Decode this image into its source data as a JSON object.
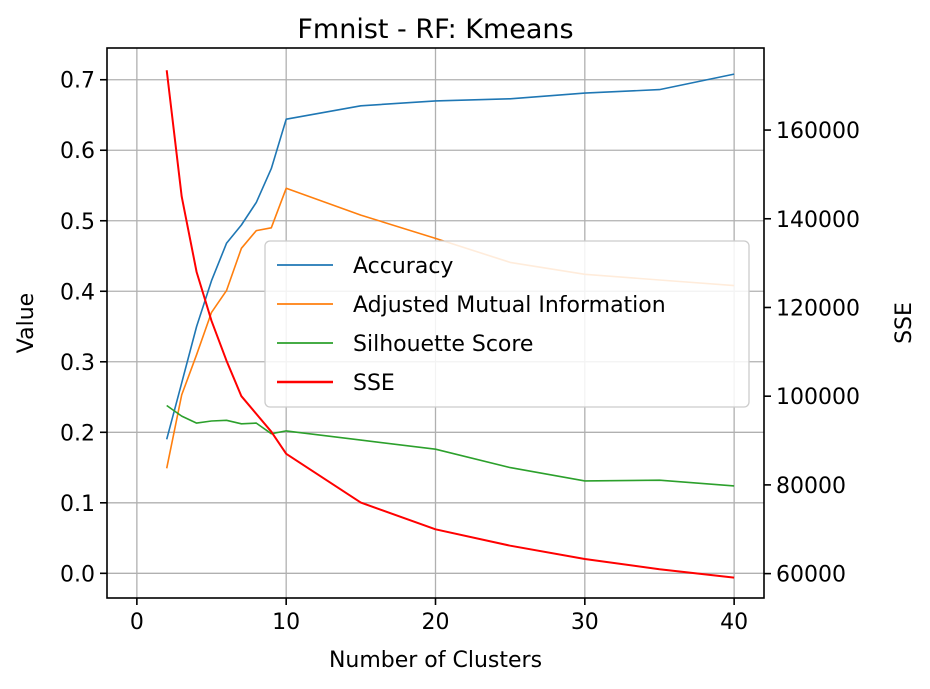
{
  "chart_data": {
    "type": "line",
    "title": "Fmnist - RF: Kmeans",
    "xlabel": "Number of Clusters",
    "ylabel": "Value",
    "y2label": "SSE",
    "xlim": [
      -2,
      42
    ],
    "ylim": [
      -0.035,
      0.745
    ],
    "y2lim": [
      54500,
      178500
    ],
    "xticks": [
      0,
      10,
      20,
      30,
      40
    ],
    "yticks": [
      0.0,
      0.1,
      0.2,
      0.3,
      0.4,
      0.5,
      0.6,
      0.7
    ],
    "yticks_labels": [
      "0.0",
      "0.1",
      "0.2",
      "0.3",
      "0.4",
      "0.5",
      "0.6",
      "0.7"
    ],
    "y2ticks": [
      60000,
      80000,
      100000,
      120000,
      140000,
      160000
    ],
    "grid": true,
    "legend_position": "center-right",
    "x": [
      2,
      3,
      4,
      5,
      6,
      7,
      8,
      9,
      10,
      15,
      20,
      25,
      30,
      35,
      40
    ],
    "series": [
      {
        "name": "Accuracy",
        "axis": "left",
        "color": "#1f77b4",
        "values": [
          0.19,
          0.27,
          0.35,
          0.415,
          0.468,
          0.494,
          0.526,
          0.574,
          0.644,
          0.663,
          0.67,
          0.673,
          0.681,
          0.686,
          0.708
        ]
      },
      {
        "name": "Adjusted Mutual Information",
        "axis": "left",
        "color": "#ff7f0e",
        "values": [
          0.149,
          0.253,
          0.31,
          0.37,
          0.401,
          0.461,
          0.486,
          0.49,
          0.546,
          0.508,
          0.475,
          0.441,
          0.424,
          0.416,
          0.408
        ]
      },
      {
        "name": "Silhouette Score",
        "axis": "left",
        "color": "#2ca02c",
        "values": [
          0.238,
          0.223,
          0.213,
          0.216,
          0.217,
          0.212,
          0.213,
          0.198,
          0.202,
          0.189,
          0.176,
          0.15,
          0.131,
          0.132,
          0.124
        ]
      },
      {
        "name": "SSE",
        "axis": "right",
        "color": "#ff0000",
        "values": [
          173500,
          145000,
          128000,
          117000,
          108000,
          100000,
          96000,
          92000,
          87000,
          76000,
          70000,
          66300,
          63300,
          61000,
          59100
        ]
      }
    ]
  }
}
